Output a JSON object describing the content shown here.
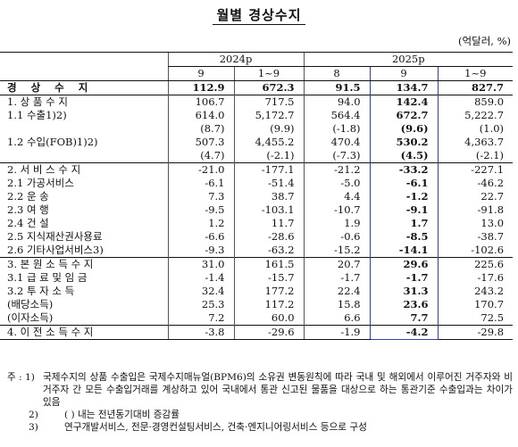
{
  "title": "월별 경상수지",
  "unit": "(억달러, %)",
  "header": {
    "year1": "2024p",
    "year2": "2025p",
    "cols": [
      "9",
      "1~9",
      "8",
      "9",
      "1~9"
    ]
  },
  "rows": [
    {
      "label": "경 상 수 지",
      "values": [
        "112.9",
        "672.3",
        "91.5",
        "134.7",
        "827.7"
      ],
      "bold": true
    },
    {
      "label": "1. 상 품 수 지",
      "values": [
        "106.7",
        "717.5",
        "94.0",
        "142.4",
        "859.0"
      ],
      "sect": true
    },
    {
      "label": "1.1 수출1)2)",
      "values": [
        "614.0",
        "5,172.7",
        "564.4",
        "672.7",
        "5,222.7"
      ]
    },
    {
      "label": "",
      "values": [
        "(8.7)",
        "(9.9)",
        "(-1.8)",
        "(9.6)",
        "(1.0)"
      ]
    },
    {
      "label": "1.2 수입(FOB)1)2)",
      "values": [
        "507.3",
        "4,455.2",
        "470.4",
        "530.2",
        "4,363.7"
      ]
    },
    {
      "label": "",
      "values": [
        "(4.7)",
        "(-2.1)",
        "(-7.3)",
        "(4.5)",
        "(-2.1)"
      ]
    },
    {
      "label": "2. 서 비 스 수 지",
      "values": [
        "-21.0",
        "-177.1",
        "-21.2",
        "-33.2",
        "-227.1"
      ],
      "sect": true
    },
    {
      "label": "2.1 가공서비스",
      "values": [
        "-6.1",
        "-51.4",
        "-5.0",
        "-6.1",
        "-46.2"
      ]
    },
    {
      "label": "2.2 운 송",
      "values": [
        "7.3",
        "38.7",
        "4.4",
        "-1.2",
        "22.7"
      ]
    },
    {
      "label": "2.3 여 행",
      "values": [
        "-9.5",
        "-103.1",
        "-10.7",
        "-9.1",
        "-91.8"
      ]
    },
    {
      "label": "2.4 건 설",
      "values": [
        "1.2",
        "11.7",
        "1.9",
        "1.7",
        "13.0"
      ]
    },
    {
      "label": "2.5 지식재산권사용료",
      "values": [
        "-6.6",
        "-28.6",
        "-0.6",
        "-8.5",
        "-38.7"
      ]
    },
    {
      "label": "2.6 기타사업서비스3)",
      "values": [
        "-9.3",
        "-63.2",
        "-15.2",
        "-14.1",
        "-102.6"
      ]
    },
    {
      "label": "3. 본 원 소 득 수 지",
      "values": [
        "31.0",
        "161.5",
        "20.7",
        "29.6",
        "225.6"
      ],
      "sect": true
    },
    {
      "label": "3.1 급 료 및 임 금",
      "values": [
        "-1.4",
        "-15.7",
        "-1.7",
        "-1.7",
        "-17.6"
      ]
    },
    {
      "label": "3.2 투 자 소 득",
      "values": [
        "32.4",
        "177.2",
        "22.4",
        "31.3",
        "243.2"
      ]
    },
    {
      "label": "(배당소득)",
      "values": [
        "25.3",
        "117.2",
        "15.8",
        "23.6",
        "170.7"
      ]
    },
    {
      "label": "(이자소득)",
      "values": [
        "7.2",
        "60.0",
        "6.6",
        "7.7",
        "72.5"
      ]
    },
    {
      "label": "4. 이 전 소 득 수 지",
      "values": [
        "-3.8",
        "-29.6",
        "-1.9",
        "-4.2",
        "-29.8"
      ],
      "sect": true
    }
  ],
  "notes": [
    {
      "key": "주 : 1)",
      "text": "국제수지의 상품 수출입은 국제수지매뉴얼(BPM6)의 소유권 변동원칙에 따라 국내 및 해외에서 이루어진 거주자와 비거주자 간 모든 수출입거래를 계상하고 있어 국내에서 통관 신고된 물품을 대상으로 하는 통관기준 수출입과는 차이가 있음"
    },
    {
      "key": "2)",
      "text": "( ) 내는 전년동기대비 증감률"
    },
    {
      "key": "3)",
      "text": "연구개발서비스, 전문·경영컨설팅서비스, 건축·엔지니어링서비스 등으로 구성"
    }
  ]
}
